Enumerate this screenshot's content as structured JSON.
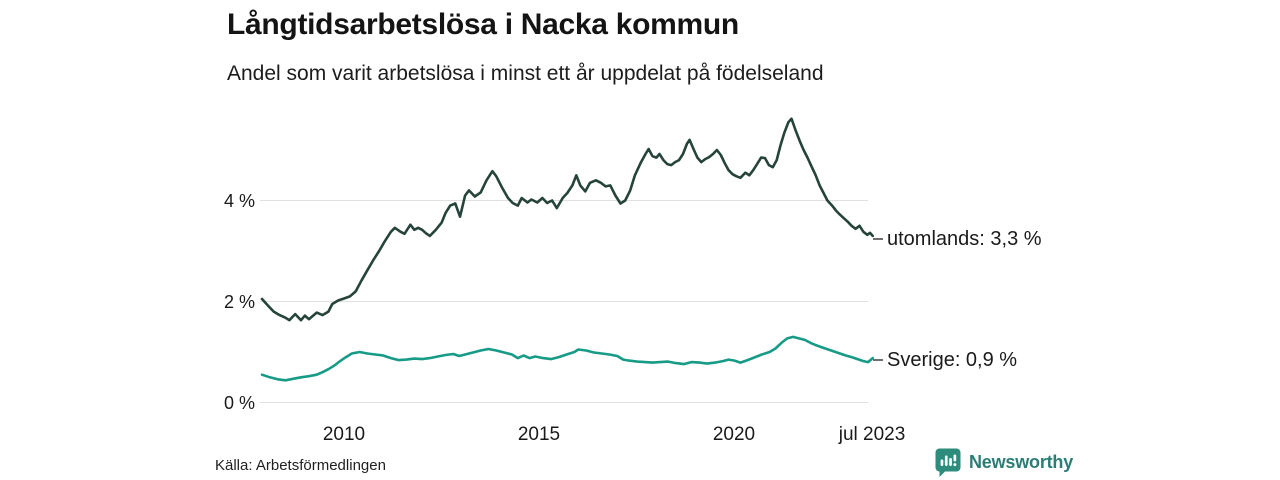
{
  "header": {
    "title": "Långtidsarbetslösa i Nacka kommun",
    "subtitle": "Andel som varit arbetslösa i minst ett år uppdelat på födelseland"
  },
  "footer": {
    "source": "Källa: Arbetsförmedlingen",
    "brand": "Newsworthy",
    "brand_icon": "newsworthy-speech-bubble-bar-chart-icon"
  },
  "colors": {
    "utomlands_line": "#26443c",
    "sverige_line": "#179b87",
    "gridline": "#e0e0e0",
    "legend_dash": "#6f6f6f",
    "brand_teal": "#2b7d75",
    "text": "#1a1a1a",
    "background": "#ffffff"
  },
  "chart_data": {
    "type": "line",
    "title": "Långtidsarbetslösa i Nacka kommun",
    "subtitle": "Andel som varit arbetslösa i minst ett år uppdelat på födelseland",
    "xlabel": "",
    "ylabel": "%",
    "grid": true,
    "legend_position": "right-end-labels",
    "xlim": [
      2007.9,
      2023.54
    ],
    "ylim": [
      0,
      5.9
    ],
    "x_ticks": [
      "2010",
      "2015",
      "2020",
      "jul 2023"
    ],
    "x_tick_years": [
      2010,
      2015,
      2020,
      2023.54
    ],
    "y_ticks": [
      "0 %",
      "2 %",
      "4 %"
    ],
    "y_tick_values": [
      0,
      2,
      4
    ],
    "series": [
      {
        "name": "utomlands",
        "label": "utomlands: 3,3 %",
        "end_value_text": "3,3 %",
        "end_value": 3.3,
        "color": "#26443c",
        "points": [
          [
            2007.9,
            2.05
          ],
          [
            2008.05,
            1.92
          ],
          [
            2008.2,
            1.8
          ],
          [
            2008.35,
            1.73
          ],
          [
            2008.5,
            1.68
          ],
          [
            2008.6,
            1.63
          ],
          [
            2008.75,
            1.75
          ],
          [
            2008.9,
            1.63
          ],
          [
            2009.0,
            1.72
          ],
          [
            2009.1,
            1.65
          ],
          [
            2009.3,
            1.78
          ],
          [
            2009.45,
            1.73
          ],
          [
            2009.6,
            1.8
          ],
          [
            2009.7,
            1.95
          ],
          [
            2009.85,
            2.02
          ],
          [
            2010.0,
            2.06
          ],
          [
            2010.15,
            2.1
          ],
          [
            2010.3,
            2.2
          ],
          [
            2010.45,
            2.42
          ],
          [
            2010.6,
            2.62
          ],
          [
            2010.75,
            2.82
          ],
          [
            2010.9,
            3.0
          ],
          [
            2011.05,
            3.2
          ],
          [
            2011.2,
            3.38
          ],
          [
            2011.3,
            3.46
          ],
          [
            2011.45,
            3.38
          ],
          [
            2011.55,
            3.34
          ],
          [
            2011.7,
            3.52
          ],
          [
            2011.8,
            3.42
          ],
          [
            2011.9,
            3.46
          ],
          [
            2012.0,
            3.42
          ],
          [
            2012.1,
            3.35
          ],
          [
            2012.2,
            3.3
          ],
          [
            2012.35,
            3.42
          ],
          [
            2012.5,
            3.56
          ],
          [
            2012.6,
            3.75
          ],
          [
            2012.72,
            3.9
          ],
          [
            2012.85,
            3.94
          ],
          [
            2012.97,
            3.68
          ],
          [
            2013.1,
            4.1
          ],
          [
            2013.2,
            4.2
          ],
          [
            2013.35,
            4.08
          ],
          [
            2013.5,
            4.16
          ],
          [
            2013.65,
            4.4
          ],
          [
            2013.8,
            4.58
          ],
          [
            2013.9,
            4.48
          ],
          [
            2014.05,
            4.25
          ],
          [
            2014.2,
            4.05
          ],
          [
            2014.32,
            3.95
          ],
          [
            2014.45,
            3.9
          ],
          [
            2014.55,
            4.05
          ],
          [
            2014.7,
            3.96
          ],
          [
            2014.8,
            4.02
          ],
          [
            2014.95,
            3.96
          ],
          [
            2015.08,
            4.05
          ],
          [
            2015.2,
            3.95
          ],
          [
            2015.33,
            4.0
          ],
          [
            2015.45,
            3.85
          ],
          [
            2015.6,
            4.05
          ],
          [
            2015.72,
            4.15
          ],
          [
            2015.85,
            4.3
          ],
          [
            2015.95,
            4.5
          ],
          [
            2016.05,
            4.3
          ],
          [
            2016.18,
            4.18
          ],
          [
            2016.3,
            4.35
          ],
          [
            2016.45,
            4.4
          ],
          [
            2016.58,
            4.35
          ],
          [
            2016.7,
            4.28
          ],
          [
            2016.82,
            4.3
          ],
          [
            2016.95,
            4.1
          ],
          [
            2017.08,
            3.94
          ],
          [
            2017.2,
            4.0
          ],
          [
            2017.33,
            4.2
          ],
          [
            2017.45,
            4.5
          ],
          [
            2017.6,
            4.75
          ],
          [
            2017.72,
            4.92
          ],
          [
            2017.8,
            5.02
          ],
          [
            2017.9,
            4.88
          ],
          [
            2018.0,
            4.85
          ],
          [
            2018.08,
            4.92
          ],
          [
            2018.18,
            4.8
          ],
          [
            2018.28,
            4.72
          ],
          [
            2018.38,
            4.7
          ],
          [
            2018.48,
            4.76
          ],
          [
            2018.58,
            4.8
          ],
          [
            2018.68,
            4.92
          ],
          [
            2018.78,
            5.12
          ],
          [
            2018.85,
            5.2
          ],
          [
            2018.95,
            5.02
          ],
          [
            2019.05,
            4.85
          ],
          [
            2019.15,
            4.76
          ],
          [
            2019.25,
            4.82
          ],
          [
            2019.35,
            4.86
          ],
          [
            2019.45,
            4.92
          ],
          [
            2019.55,
            5.0
          ],
          [
            2019.65,
            4.9
          ],
          [
            2019.75,
            4.74
          ],
          [
            2019.85,
            4.6
          ],
          [
            2019.95,
            4.52
          ],
          [
            2020.05,
            4.48
          ],
          [
            2020.15,
            4.45
          ],
          [
            2020.28,
            4.55
          ],
          [
            2020.38,
            4.5
          ],
          [
            2020.48,
            4.6
          ],
          [
            2020.58,
            4.72
          ],
          [
            2020.68,
            4.85
          ],
          [
            2020.78,
            4.84
          ],
          [
            2020.88,
            4.7
          ],
          [
            2020.98,
            4.66
          ],
          [
            2021.08,
            4.8
          ],
          [
            2021.18,
            5.1
          ],
          [
            2021.28,
            5.35
          ],
          [
            2021.38,
            5.55
          ],
          [
            2021.46,
            5.62
          ],
          [
            2021.56,
            5.4
          ],
          [
            2021.67,
            5.18
          ],
          [
            2021.77,
            5.0
          ],
          [
            2021.87,
            4.85
          ],
          [
            2021.97,
            4.68
          ],
          [
            2022.08,
            4.5
          ],
          [
            2022.18,
            4.3
          ],
          [
            2022.28,
            4.15
          ],
          [
            2022.38,
            4.0
          ],
          [
            2022.5,
            3.9
          ],
          [
            2022.6,
            3.8
          ],
          [
            2022.7,
            3.72
          ],
          [
            2022.8,
            3.65
          ],
          [
            2022.9,
            3.58
          ],
          [
            2023.0,
            3.5
          ],
          [
            2023.1,
            3.44
          ],
          [
            2023.2,
            3.5
          ],
          [
            2023.3,
            3.38
          ],
          [
            2023.4,
            3.32
          ],
          [
            2023.47,
            3.36
          ],
          [
            2023.54,
            3.3
          ]
        ]
      },
      {
        "name": "Sverige",
        "label": "Sverige: 0,9 %",
        "end_value_text": "0,9 %",
        "end_value": 0.9,
        "color": "#179b87",
        "points": [
          [
            2007.9,
            0.55
          ],
          [
            2008.1,
            0.5
          ],
          [
            2008.3,
            0.46
          ],
          [
            2008.5,
            0.44
          ],
          [
            2008.7,
            0.47
          ],
          [
            2008.9,
            0.5
          ],
          [
            2009.1,
            0.52
          ],
          [
            2009.3,
            0.55
          ],
          [
            2009.45,
            0.6
          ],
          [
            2009.6,
            0.66
          ],
          [
            2009.75,
            0.73
          ],
          [
            2009.9,
            0.82
          ],
          [
            2010.05,
            0.9
          ],
          [
            2010.2,
            0.97
          ],
          [
            2010.4,
            1.0
          ],
          [
            2010.6,
            0.97
          ],
          [
            2010.8,
            0.95
          ],
          [
            2011.0,
            0.93
          ],
          [
            2011.2,
            0.88
          ],
          [
            2011.4,
            0.84
          ],
          [
            2011.6,
            0.85
          ],
          [
            2011.8,
            0.87
          ],
          [
            2012.0,
            0.86
          ],
          [
            2012.2,
            0.88
          ],
          [
            2012.4,
            0.91
          ],
          [
            2012.6,
            0.94
          ],
          [
            2012.8,
            0.96
          ],
          [
            2012.95,
            0.92
          ],
          [
            2013.1,
            0.95
          ],
          [
            2013.3,
            0.99
          ],
          [
            2013.5,
            1.03
          ],
          [
            2013.7,
            1.06
          ],
          [
            2013.9,
            1.03
          ],
          [
            2014.1,
            0.99
          ],
          [
            2014.3,
            0.95
          ],
          [
            2014.45,
            0.88
          ],
          [
            2014.6,
            0.93
          ],
          [
            2014.75,
            0.88
          ],
          [
            2014.9,
            0.91
          ],
          [
            2015.1,
            0.88
          ],
          [
            2015.3,
            0.86
          ],
          [
            2015.5,
            0.9
          ],
          [
            2015.7,
            0.95
          ],
          [
            2015.9,
            1.0
          ],
          [
            2016.0,
            1.05
          ],
          [
            2016.2,
            1.03
          ],
          [
            2016.4,
            0.99
          ],
          [
            2016.6,
            0.97
          ],
          [
            2016.8,
            0.95
          ],
          [
            2017.0,
            0.92
          ],
          [
            2017.15,
            0.85
          ],
          [
            2017.3,
            0.83
          ],
          [
            2017.5,
            0.81
          ],
          [
            2017.7,
            0.8
          ],
          [
            2017.9,
            0.79
          ],
          [
            2018.1,
            0.8
          ],
          [
            2018.3,
            0.81
          ],
          [
            2018.5,
            0.78
          ],
          [
            2018.7,
            0.76
          ],
          [
            2018.9,
            0.8
          ],
          [
            2019.1,
            0.79
          ],
          [
            2019.3,
            0.77
          ],
          [
            2019.5,
            0.79
          ],
          [
            2019.7,
            0.82
          ],
          [
            2019.85,
            0.85
          ],
          [
            2020.0,
            0.83
          ],
          [
            2020.15,
            0.79
          ],
          [
            2020.3,
            0.83
          ],
          [
            2020.5,
            0.89
          ],
          [
            2020.7,
            0.95
          ],
          [
            2020.9,
            1.0
          ],
          [
            2021.05,
            1.07
          ],
          [
            2021.2,
            1.18
          ],
          [
            2021.35,
            1.27
          ],
          [
            2021.5,
            1.3
          ],
          [
            2021.65,
            1.27
          ],
          [
            2021.8,
            1.24
          ],
          [
            2021.95,
            1.18
          ],
          [
            2022.1,
            1.13
          ],
          [
            2022.25,
            1.09
          ],
          [
            2022.4,
            1.05
          ],
          [
            2022.55,
            1.01
          ],
          [
            2022.7,
            0.97
          ],
          [
            2022.85,
            0.93
          ],
          [
            2023.0,
            0.9
          ],
          [
            2023.15,
            0.86
          ],
          [
            2023.3,
            0.82
          ],
          [
            2023.42,
            0.8
          ],
          [
            2023.54,
            0.88
          ]
        ]
      }
    ]
  }
}
